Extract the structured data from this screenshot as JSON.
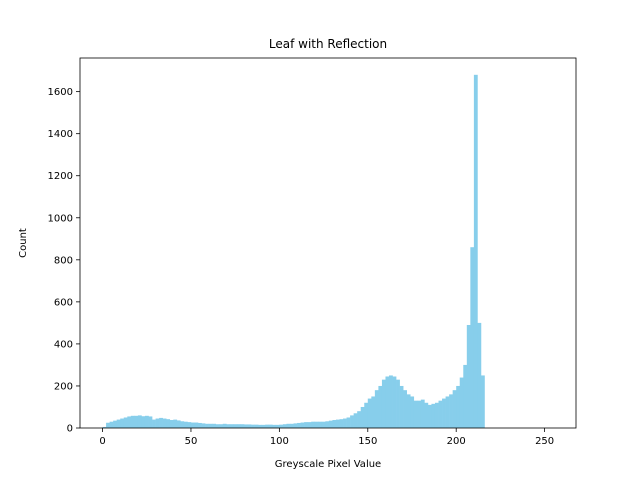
{
  "chart_data": {
    "type": "bar",
    "title": "Leaf with Reflection",
    "xlabel": "Greyscale Pixel Value",
    "ylabel": "Count",
    "xlim": [
      -12.75,
      267.75
    ],
    "ylim": [
      0,
      1760
    ],
    "xticks": [
      0,
      50,
      100,
      150,
      200,
      250
    ],
    "yticks": [
      0,
      200,
      400,
      600,
      800,
      1000,
      1200,
      1400,
      1600
    ],
    "bar_color": "#87ceeb",
    "grid": false,
    "legend": "none",
    "bin_start": 0,
    "bin_width": 2,
    "values": [
      5,
      25,
      30,
      35,
      40,
      45,
      50,
      55,
      58,
      58,
      60,
      56,
      58,
      55,
      40,
      45,
      48,
      45,
      42,
      38,
      40,
      36,
      32,
      30,
      28,
      26,
      26,
      24,
      22,
      20,
      20,
      20,
      18,
      18,
      20,
      18,
      18,
      18,
      18,
      18,
      17,
      17,
      16,
      16,
      15,
      15,
      16,
      16,
      15,
      15,
      16,
      18,
      20,
      20,
      22,
      24,
      26,
      28,
      28,
      30,
      30,
      30,
      30,
      32,
      35,
      38,
      40,
      42,
      45,
      50,
      60,
      70,
      80,
      100,
      120,
      140,
      150,
      180,
      200,
      230,
      245,
      250,
      245,
      230,
      200,
      180,
      160,
      150,
      130,
      130,
      135,
      120,
      110,
      115,
      120,
      130,
      140,
      150,
      160,
      180,
      200,
      240,
      300,
      490,
      860,
      1680,
      500,
      250
    ]
  }
}
